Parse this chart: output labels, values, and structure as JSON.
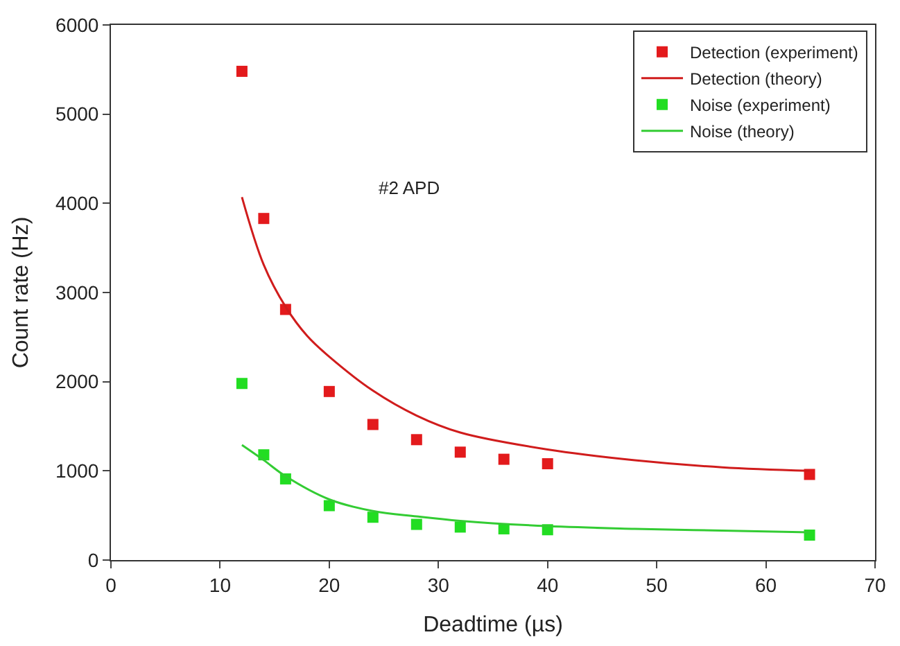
{
  "chart_data": {
    "type": "scatter",
    "xlabel": "Deadtime (µs)",
    "ylabel": "Count rate (Hz)",
    "xlim": [
      0,
      70
    ],
    "xticks": [
      0,
      10,
      20,
      30,
      40,
      50,
      60,
      70
    ],
    "ylim": [
      0,
      6000
    ],
    "yticks": [
      0,
      1000,
      2000,
      3000,
      4000,
      5000,
      6000
    ],
    "legend": "top right",
    "marker": "square",
    "annotations": [
      "#2 APD"
    ],
    "series": [
      {
        "name": "Detection (experiment)",
        "color": "#e31a1c",
        "x": [
          12,
          14,
          16,
          20,
          24,
          28,
          32,
          36,
          40,
          64
        ],
        "values": [
          5480,
          3830,
          2810,
          1890,
          1520,
          1350,
          1210,
          1130,
          1080,
          960
        ]
      },
      {
        "name": "Detection (theory)",
        "color": "#d01c1c",
        "type": "line",
        "marker": "none",
        "x": [
          12,
          14,
          16,
          18,
          20,
          24,
          28,
          32,
          40,
          48,
          56,
          64
        ],
        "values": [
          4070,
          3310,
          2840,
          2510,
          2280,
          1900,
          1620,
          1430,
          1240,
          1120,
          1040,
          1000
        ]
      },
      {
        "name": "Noise (experiment)",
        "color": "#22dd22",
        "x": [
          12,
          14,
          16,
          20,
          24,
          28,
          32,
          36,
          40,
          64
        ],
        "values": [
          1980,
          1180,
          910,
          610,
          480,
          400,
          370,
          350,
          340,
          280
        ]
      },
      {
        "name": "Noise (theory)",
        "color": "#33cc33",
        "type": "line",
        "marker": "none",
        "x": [
          12,
          14,
          16,
          20,
          24,
          28,
          32,
          40,
          48,
          56,
          64
        ],
        "values": [
          1290,
          1120,
          940,
          680,
          550,
          490,
          440,
          380,
          350,
          330,
          310
        ]
      }
    ]
  }
}
